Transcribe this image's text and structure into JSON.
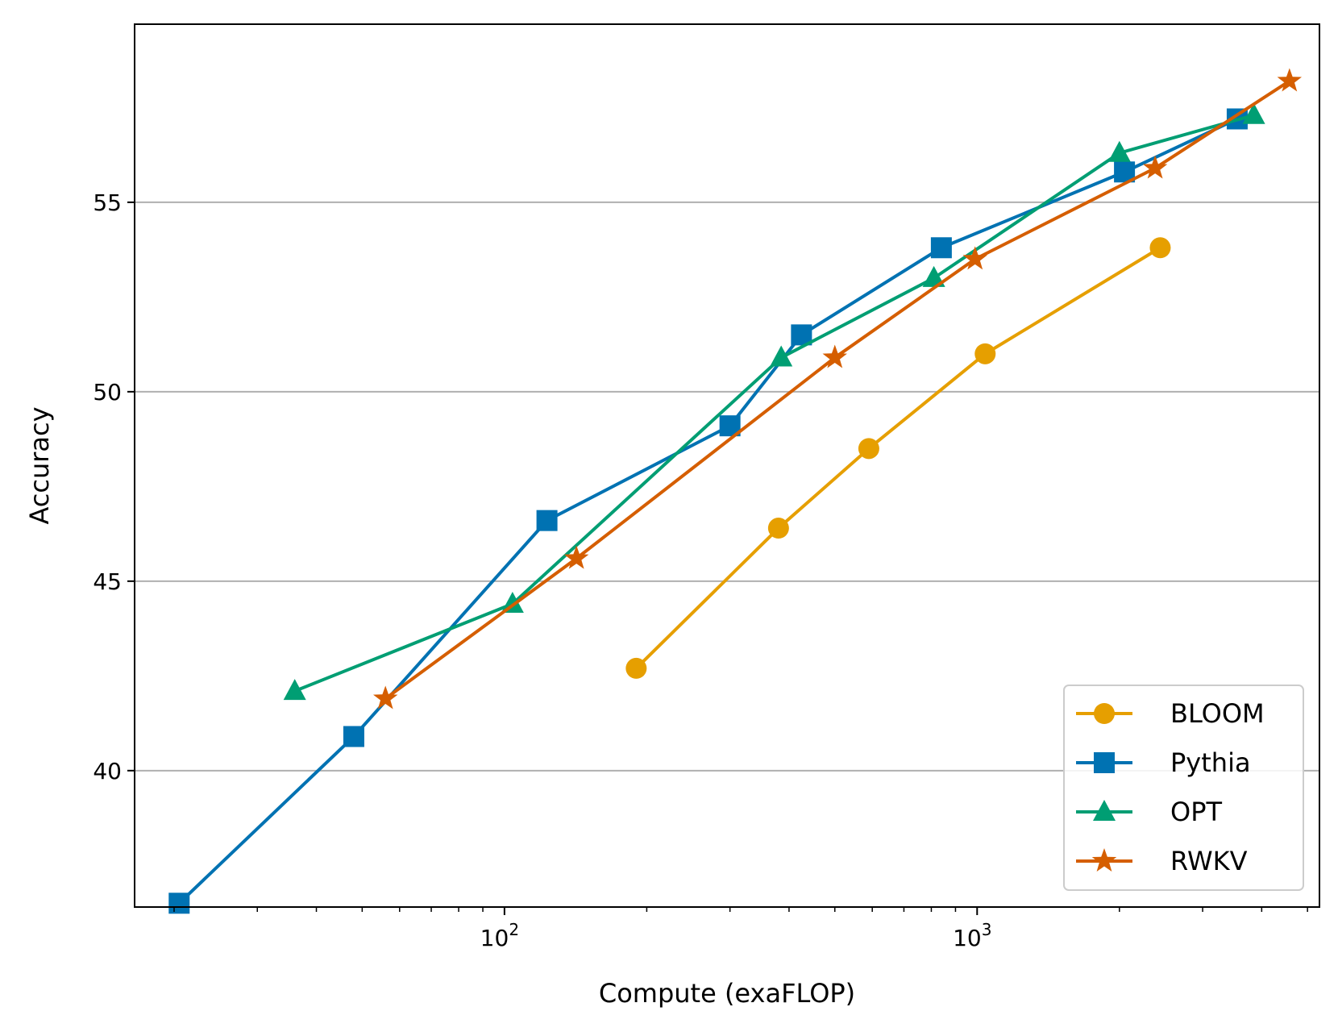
{
  "chart_data": {
    "type": "line",
    "xlabel": "Compute (exaFLOP)",
    "ylabel": "Accuracy",
    "x_scale": "log",
    "xlim": [
      16.5,
      5300
    ],
    "ylim": [
      36.4,
      59.7
    ],
    "grid": "horizontal",
    "legend_position": "lower-right",
    "x_ticks": [
      {
        "value": 100,
        "base": "10",
        "exp": "2"
      },
      {
        "value": 1000,
        "base": "10",
        "exp": "3"
      }
    ],
    "y_ticks": [
      40,
      45,
      50,
      55
    ],
    "series": [
      {
        "name": "BLOOM",
        "color": "#E69F00",
        "marker": "circle",
        "x": [
          190,
          380,
          590,
          1040,
          2440
        ],
        "y": [
          42.7,
          46.4,
          48.5,
          51.0,
          53.8
        ]
      },
      {
        "name": "Pythia",
        "color": "#0072B2",
        "marker": "square",
        "x": [
          20.5,
          48,
          123,
          300,
          425,
          840,
          2050,
          3550
        ],
        "y": [
          36.5,
          40.9,
          46.6,
          49.1,
          51.5,
          53.8,
          55.8,
          57.2
        ]
      },
      {
        "name": "OPT",
        "color": "#009E73",
        "marker": "triangle",
        "x": [
          36,
          104,
          385,
          810,
          2000,
          3850
        ],
        "y": [
          42.1,
          44.4,
          50.9,
          53.0,
          56.3,
          57.3
        ]
      },
      {
        "name": "RWKV",
        "color": "#D55E00",
        "marker": "star",
        "x": [
          56,
          142,
          500,
          990,
          2380,
          4580
        ],
        "y": [
          41.9,
          45.6,
          50.9,
          53.5,
          55.9,
          58.2
        ]
      }
    ]
  }
}
